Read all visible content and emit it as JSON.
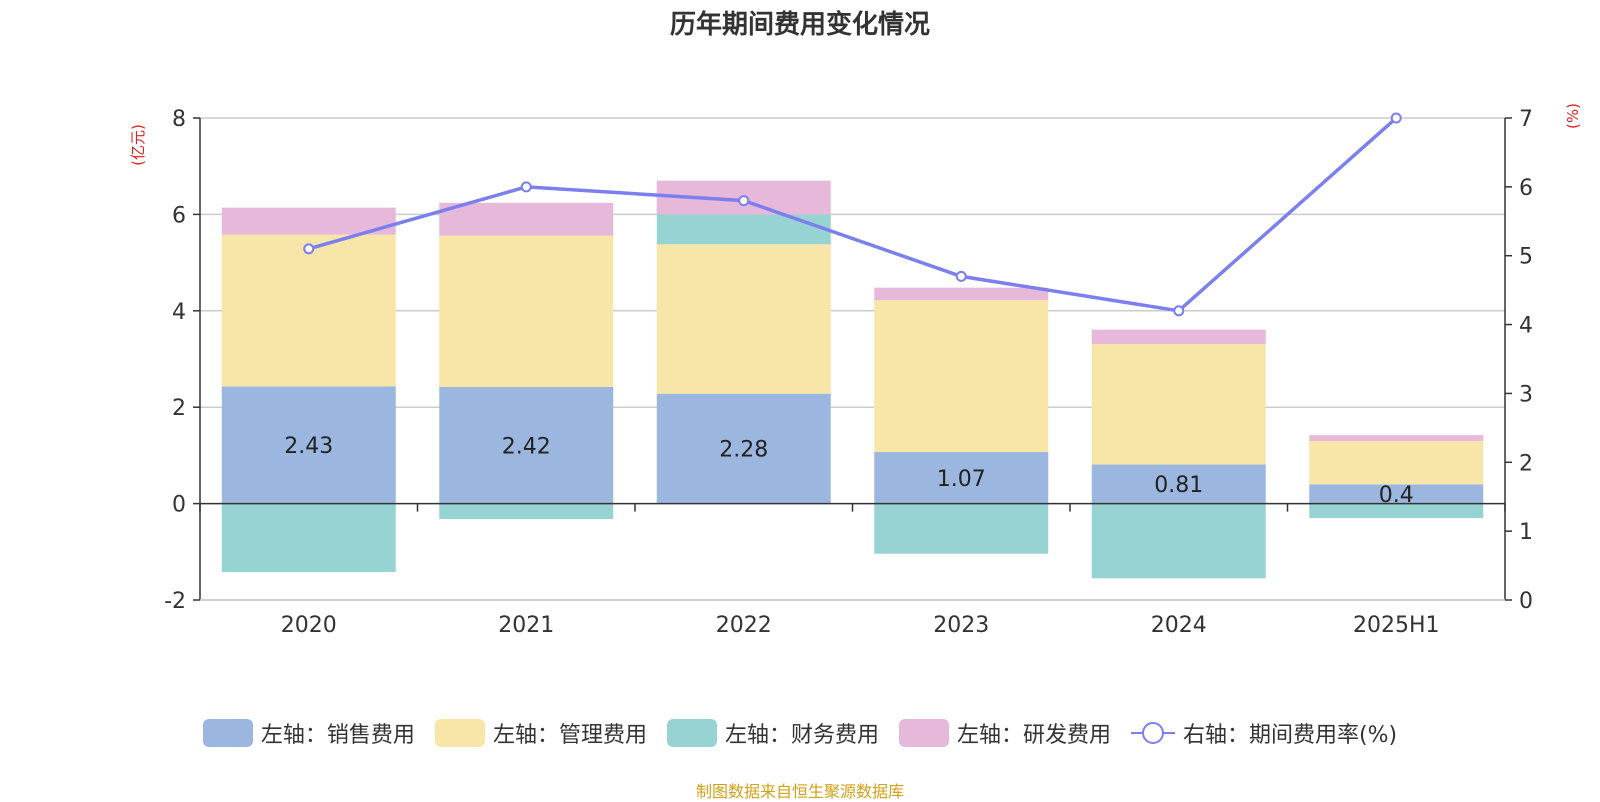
{
  "chart_data": {
    "type": "bar",
    "title": "历年期间费用变化情况",
    "categories": [
      "2020",
      "2021",
      "2022",
      "2023",
      "2024",
      "2025H1"
    ],
    "left_axis": {
      "unit_label": "(亿元)",
      "ylim": [
        -2,
        8
      ],
      "ticks": [
        "-2",
        "0",
        "2",
        "4",
        "6",
        "8"
      ]
    },
    "right_axis": {
      "unit_label": "(%)",
      "ylim": [
        0,
        7
      ],
      "ticks": [
        "0",
        "1",
        "2",
        "3",
        "4",
        "5",
        "6",
        "7"
      ]
    },
    "series": [
      {
        "name": "左轴：销售费用",
        "color": "#9bb7e0",
        "axis": "left",
        "stack": true,
        "values": [
          2.43,
          2.42,
          2.28,
          1.07,
          0.81,
          0.4
        ],
        "labels": [
          "2.43",
          "2.42",
          "2.28",
          "1.07",
          "0.81",
          "0.4"
        ]
      },
      {
        "name": "左轴：管理费用",
        "color": "#f8e6a8",
        "axis": "left",
        "stack": true,
        "values": [
          3.15,
          3.14,
          3.1,
          3.15,
          2.5,
          0.9
        ]
      },
      {
        "name": "左轴：财务费用",
        "color": "#98d3d4",
        "axis": "left",
        "stack": true,
        "values": [
          -1.42,
          -0.32,
          0.62,
          -1.04,
          -1.55,
          -0.3
        ]
      },
      {
        "name": "左轴：研发费用",
        "color": "#e6b8d9",
        "axis": "left",
        "stack": true,
        "values": [
          0.56,
          0.68,
          0.7,
          0.26,
          0.3,
          0.12
        ]
      },
      {
        "name": "右轴：期间费用率(%)",
        "color": "#7b7ff0",
        "axis": "right",
        "type": "line",
        "values": [
          5.1,
          6.0,
          5.8,
          4.7,
          4.2,
          7.0
        ]
      }
    ],
    "grid": true,
    "legend_position": "bottom"
  },
  "footer": {
    "source": "制图数据来自恒生聚源数据库"
  }
}
